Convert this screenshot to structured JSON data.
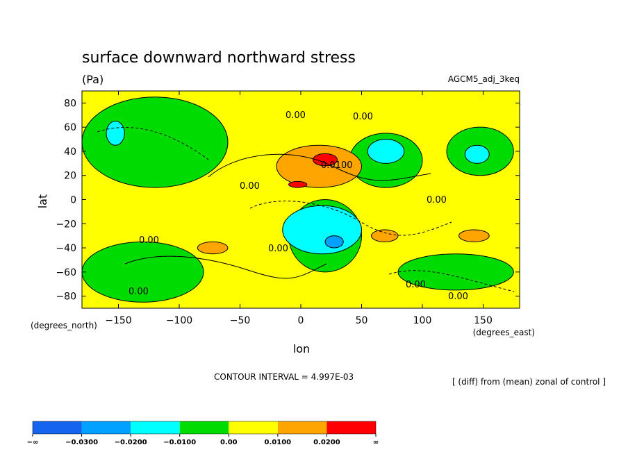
{
  "chart_data": {
    "type": "heatmap",
    "title": "surface downward northward stress",
    "units": "(Pa)",
    "dataset": "AGCM5_adj_3keq",
    "xlabel": "lon",
    "ylabel": "lat",
    "x_unit_label": "(degrees_east)",
    "y_unit_label": "(degrees_north)",
    "xlim": [
      -180,
      180
    ],
    "ylim": [
      -90,
      90
    ],
    "x_ticks": [
      -150,
      -100,
      -50,
      0,
      50,
      100,
      150
    ],
    "y_ticks": [
      80,
      60,
      40,
      20,
      0,
      -20,
      -40,
      -60,
      -80
    ],
    "x_tick_labels": [
      "−150",
      "−100",
      "−50",
      "0",
      "50",
      "100",
      "150"
    ],
    "y_tick_labels": [
      "80",
      "60",
      "40",
      "20",
      "0",
      "−20",
      "−40",
      "−60",
      "−80"
    ],
    "contour_interval_text": "CONTOUR INTERVAL = 4.997E-03",
    "note": "[ (diff) from (mean) zonal of control ]",
    "contour_labels": [
      "0.00",
      "0.00",
      "0.00",
      "0.00",
      "0.0100",
      "0.00",
      "0.00",
      "0.00",
      "0.00",
      "0.00"
    ],
    "colorbar": {
      "colors": [
        "#1464f0",
        "#00a0ff",
        "#00ffff",
        "#00dc00",
        "#ffff00",
        "#ffa500",
        "#ff0000"
      ],
      "labels": [
        "−∞",
        "−0.0300",
        "−0.0200",
        "−0.0100",
        "0.00",
        "0.0100",
        "0.0200",
        "∞"
      ]
    },
    "regions": [
      {
        "level": "green",
        "color": "#00dc00",
        "lon": [
          -180,
          -60
        ],
        "lat": [
          10,
          85
        ]
      },
      {
        "level": "cyan",
        "color": "#00ffff",
        "lon": [
          -160,
          -145
        ],
        "lat": [
          45,
          65
        ]
      },
      {
        "level": "green",
        "color": "#00dc00",
        "lon": [
          -10,
          50
        ],
        "lat": [
          -60,
          0
        ]
      },
      {
        "level": "cyan",
        "color": "#00ffff",
        "lon": [
          -15,
          50
        ],
        "lat": [
          -45,
          -5
        ]
      },
      {
        "level": "blue",
        "color": "#00a0ff",
        "lon": [
          20,
          35
        ],
        "lat": [
          -40,
          -30
        ]
      },
      {
        "level": "green",
        "color": "#00dc00",
        "lon": [
          -180,
          -80
        ],
        "lat": [
          -85,
          -35
        ]
      },
      {
        "level": "green",
        "color": "#00dc00",
        "lon": [
          40,
          100
        ],
        "lat": [
          10,
          55
        ]
      },
      {
        "level": "cyan",
        "color": "#00ffff",
        "lon": [
          55,
          85
        ],
        "lat": [
          30,
          50
        ]
      },
      {
        "level": "green",
        "color": "#00dc00",
        "lon": [
          120,
          175
        ],
        "lat": [
          20,
          60
        ]
      },
      {
        "level": "cyan",
        "color": "#00ffff",
        "lon": [
          135,
          155
        ],
        "lat": [
          30,
          45
        ]
      },
      {
        "level": "green",
        "color": "#00dc00",
        "lon": [
          80,
          175
        ],
        "lat": [
          -75,
          -45
        ]
      },
      {
        "level": "orange",
        "color": "#ffa500",
        "lon": [
          -20,
          50
        ],
        "lat": [
          10,
          45
        ]
      },
      {
        "level": "red",
        "color": "#ff0000",
        "lon": [
          10,
          30
        ],
        "lat": [
          28,
          38
        ]
      },
      {
        "level": "red",
        "color": "#ff0000",
        "lon": [
          -10,
          5
        ],
        "lat": [
          10,
          15
        ]
      },
      {
        "level": "orange",
        "color": "#ffa500",
        "lon": [
          -85,
          -60
        ],
        "lat": [
          -45,
          -35
        ]
      },
      {
        "level": "orange",
        "color": "#ffa500",
        "lon": [
          58,
          80
        ],
        "lat": [
          -35,
          -25
        ]
      },
      {
        "level": "orange",
        "color": "#ffa500",
        "lon": [
          130,
          155
        ],
        "lat": [
          -35,
          -25
        ]
      }
    ]
  }
}
